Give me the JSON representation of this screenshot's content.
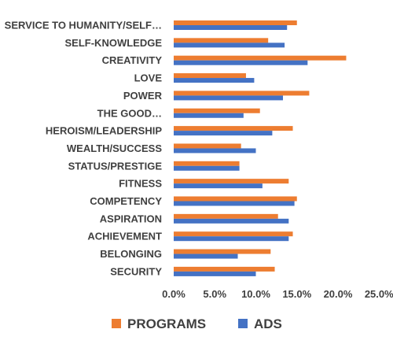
{
  "chart_data": {
    "type": "bar",
    "orientation": "horizontal",
    "categories": [
      "SERVICE TO HUMANITY/SELF…",
      "SELF-KNOWLEDGE",
      "CREATIVITY",
      "LOVE",
      "POWER",
      "THE GOOD…",
      "HEROISM/LEADERSHIP",
      "WEALTH/SUCCESS",
      "STATUS/PRESTIGE",
      "FITNESS",
      "COMPETENCY",
      "ASPIRATION",
      "ACHIEVEMENT",
      "BELONGING",
      "SECURITY"
    ],
    "series": [
      {
        "name": "PROGRAMS",
        "color": "#ED7D31",
        "values": [
          15.0,
          11.5,
          21.0,
          8.8,
          16.5,
          10.5,
          14.5,
          8.2,
          8.0,
          14.0,
          15.0,
          12.7,
          14.5,
          11.8,
          12.3
        ]
      },
      {
        "name": "ADS",
        "color": "#4472C4",
        "values": [
          13.8,
          13.5,
          16.3,
          9.8,
          13.3,
          8.5,
          12.0,
          10.0,
          8.0,
          10.8,
          14.7,
          14.0,
          14.0,
          7.8,
          10.0
        ]
      }
    ],
    "xlim": [
      0,
      25
    ],
    "x_ticks": [
      "0.0%",
      "5.0%",
      "10.0%",
      "15.0%",
      "20.0%",
      "25.0%"
    ],
    "grid": false,
    "legend_position": "bottom"
  }
}
